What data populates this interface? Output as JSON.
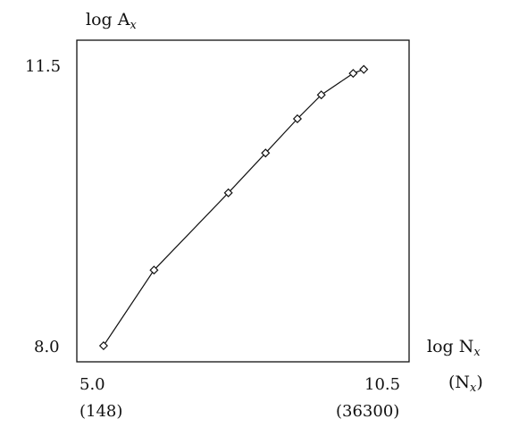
{
  "chart_data": {
    "type": "line",
    "title": "",
    "xlabel": "log N_x",
    "xlabel_parts": {
      "base": "log N",
      "sub": "x"
    },
    "xlabel2_parts": {
      "open": "(N",
      "sub": "x",
      "close": ")"
    },
    "ylabel": "log A_x",
    "ylabel_parts": {
      "base": "log A",
      "sub": "x"
    },
    "xlim": [
      5.0,
      10.5
    ],
    "ylim": [
      8.0,
      11.5
    ],
    "x_ticks": [
      {
        "value": 5.0,
        "label": "5.0",
        "sublabel": "(148)"
      },
      {
        "value": 10.5,
        "label": "10.5",
        "sublabel": "(36300)"
      }
    ],
    "y_ticks": [
      {
        "value": 8.0,
        "label": "8.0"
      },
      {
        "value": 11.5,
        "label": "11.5"
      }
    ],
    "grid": false,
    "marker": "diamond",
    "series": [
      {
        "x": [
          5.1,
          6.05,
          7.45,
          8.15,
          8.75,
          9.2,
          9.8,
          10.0
        ],
        "y": [
          8.0,
          8.95,
          9.92,
          10.42,
          10.85,
          11.15,
          11.42,
          11.47
        ]
      }
    ]
  }
}
